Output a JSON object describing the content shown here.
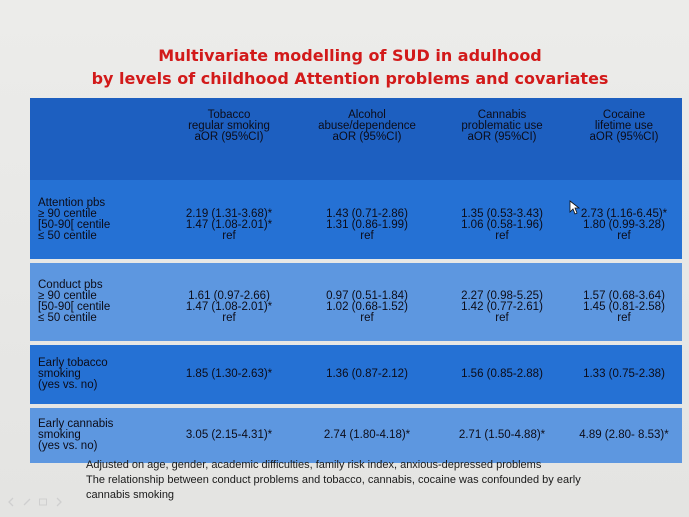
{
  "slide": {
    "title_line1": "Multivariate modelling of SUD in adulhood",
    "title_line2": "by levels of childhood Attention problems and covariates"
  },
  "table": {
    "headers": [
      [
        "Tobacco",
        "regular smoking",
        "aOR (95%CI)"
      ],
      [
        "Alcohol",
        "abuse/dependence",
        "aOR (95%CI)"
      ],
      [
        "Cannabis",
        "problematic use",
        "aOR (95%CI)"
      ],
      [
        "Cocaine",
        "lifetime use",
        "aOR (95%CI)"
      ]
    ],
    "rows": [
      {
        "label": [
          "Attention pbs",
          "≥ 90 centile",
          "[50-90[ centile",
          "≤ 50 centile"
        ],
        "values": [
          [
            "",
            "2.19 (1.31-3.68)*",
            "1.47 (1.08-2.01)*",
            "ref"
          ],
          [
            "",
            "1.43 (0.71-2.86)",
            "1.31 (0.86-1.99)",
            "ref"
          ],
          [
            "",
            "1.35 (0.53-3.43)",
            "1.06 (0.58-1.96)",
            "ref"
          ],
          [
            "",
            "2.73 (1.16-6.45)*",
            "1.80 (0.99-3.28)",
            "ref"
          ]
        ]
      },
      {
        "label": [
          "Conduct pbs",
          "≥ 90 centile",
          "[50-90[ centile",
          "≤ 50 centile"
        ],
        "values": [
          [
            "",
            "1.61 (0.97-2.66)",
            "1.47 (1.08-2.01)*",
            "ref"
          ],
          [
            "",
            "0.97 (0.51-1.84)",
            "1.02 (0.68-1.52)",
            "ref"
          ],
          [
            "",
            "2.27 (0.98-5.25)",
            "1.42 (0.77-2.61)",
            "ref"
          ],
          [
            "",
            "1.57 (0.68-3.64)",
            "1.45 (0.81-2.58)",
            "ref"
          ]
        ]
      },
      {
        "label": [
          "Early tobacco",
          "smoking",
          "(yes vs. no)"
        ],
        "values": [
          "1.85 (1.30-2.63)*",
          "1.36 (0.87-2.12)",
          "1.56 (0.85-2.88)",
          "1.33 (0.75-2.38)"
        ]
      },
      {
        "label": [
          "Early cannabis",
          "smoking",
          "(yes vs. no)"
        ],
        "values": [
          "3.05 (2.15-4.31)*",
          "2.74 (1.80-4.18)*",
          "2.71 (1.50-4.88)*",
          "4.89 (2.80- 8.53)*"
        ]
      }
    ]
  },
  "footnote": {
    "line1": "Adjusted on age, gender, academic difficulties, family risk index, anxious-depressed problems",
    "line2": "The relationship between conduct problems and tobacco, cannabis, cocaine was confounded by early",
    "line3": "cannabis smoking"
  },
  "colors": {
    "title": "#d21a1a",
    "header_bg": "#1d5fc0",
    "dark_row_bg": "#2571d4",
    "light_row_bg": "#5d97e0"
  },
  "toolbar_icons": [
    "arrow-left-icon",
    "pen-icon",
    "slides-icon",
    "arrow-right-icon"
  ]
}
